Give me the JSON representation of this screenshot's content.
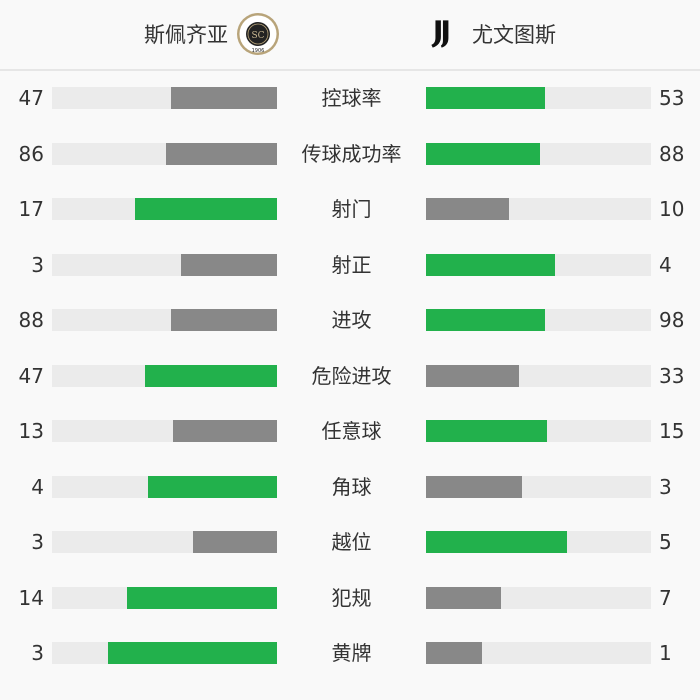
{
  "header": {
    "home_team": "斯佩齐亚",
    "away_team": "尤文图斯",
    "home_logo": {
      "icon": "spezia-crest",
      "text": "SPEZIA 1906"
    },
    "away_logo": {
      "icon": "juventus-j-logo"
    }
  },
  "colors": {
    "winner": "#22b14c",
    "loser": "#888888",
    "track": "#ebebeb"
  },
  "stats": [
    {
      "label": "控球率",
      "home": 47,
      "away": 53
    },
    {
      "label": "传球成功率",
      "home": 86,
      "away": 88
    },
    {
      "label": "射门",
      "home": 17,
      "away": 10
    },
    {
      "label": "射正",
      "home": 3,
      "away": 4
    },
    {
      "label": "进攻",
      "home": 88,
      "away": 98
    },
    {
      "label": "危险进攻",
      "home": 47,
      "away": 33
    },
    {
      "label": "任意球",
      "home": 13,
      "away": 15
    },
    {
      "label": "角球",
      "home": 4,
      "away": 3
    },
    {
      "label": "越位",
      "home": 3,
      "away": 5
    },
    {
      "label": "犯规",
      "home": 14,
      "away": 7
    },
    {
      "label": "黄牌",
      "home": 3,
      "away": 1
    }
  ]
}
